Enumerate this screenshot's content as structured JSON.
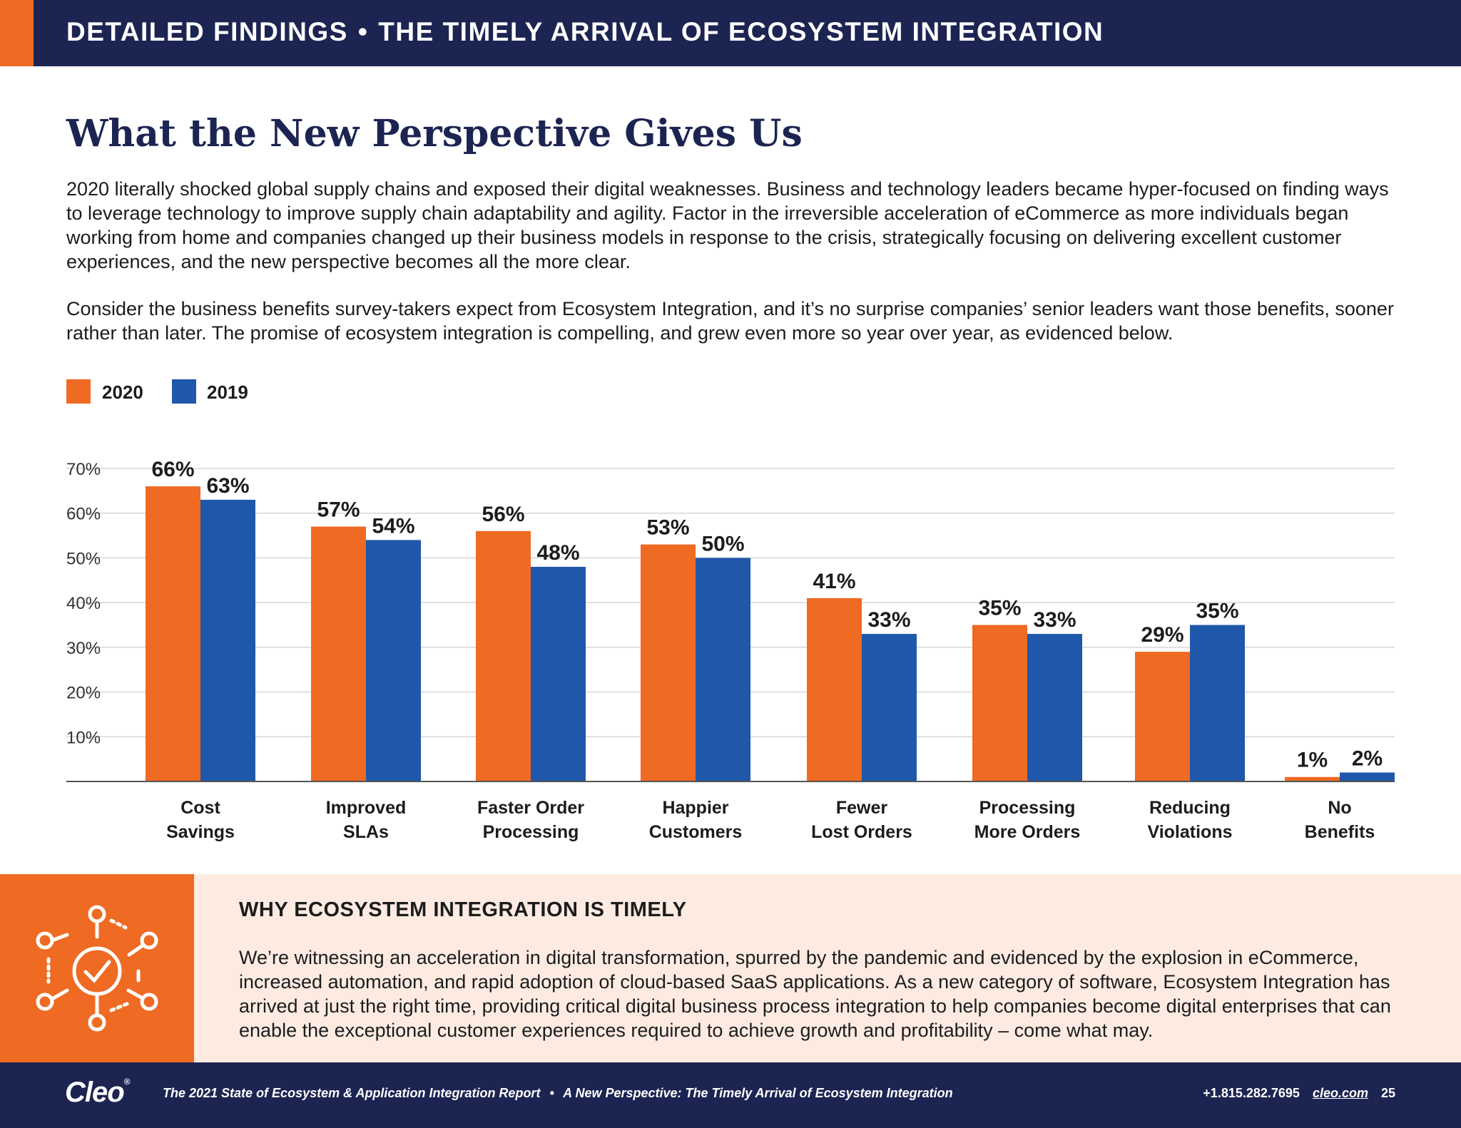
{
  "header": {
    "section": "DETAILED FINDINGS",
    "separator": "•",
    "title": "THE TIMELY ARRIVAL OF ECOSYSTEM INTEGRATION"
  },
  "page_title": "What the New Perspective Gives Us",
  "paragraphs": [
    "2020 literally shocked global supply chains and exposed their digital weaknesses. Business and technology leaders became hyper-focused on finding ways to leverage technology to improve supply chain adaptability and agility. Factor in the irreversible acceleration of eCommerce as more individuals began working from home and companies changed up their business models in response to the crisis, strategically focusing on delivering excellent customer experiences, and the new perspective becomes all the more clear.",
    "Consider the business benefits survey-takers expect from Ecosystem Integration, and it’s no surprise companies’ senior leaders want those benefits, sooner rather than later. The promise of ecosystem integration is compelling, and grew even more so year over year, as evidenced below."
  ],
  "colors": {
    "s2020": "#ef6a22",
    "s2019": "#1f57aa",
    "navy": "#1c2452",
    "grid": "#d6d6d6",
    "axis": "#555555"
  },
  "chart_data": {
    "type": "bar",
    "title": "",
    "xlabel": "",
    "ylabel": "",
    "ylim": [
      0,
      70
    ],
    "yticks": [
      10,
      20,
      30,
      40,
      50,
      60,
      70
    ],
    "ytick_labels": [
      "10%",
      "20%",
      "30%",
      "40%",
      "50%",
      "60%",
      "70%"
    ],
    "grid": true,
    "legend_position": "top-left",
    "categories": [
      [
        "Cost",
        "Savings"
      ],
      [
        "Improved",
        "SLAs"
      ],
      [
        "Faster Order",
        "Processing"
      ],
      [
        "Happier",
        "Customers"
      ],
      [
        "Fewer",
        "Lost Orders"
      ],
      [
        "Processing",
        "More Orders"
      ],
      [
        "Reducing",
        "Violations"
      ],
      [
        "No",
        "Benefits"
      ]
    ],
    "series": [
      {
        "name": "2020",
        "values": [
          66,
          57,
          56,
          53,
          41,
          35,
          29,
          1
        ],
        "labels": [
          "66%",
          "57%",
          "56%",
          "53%",
          "41%",
          "35%",
          "29%",
          "1%"
        ]
      },
      {
        "name": "2019",
        "values": [
          63,
          54,
          48,
          50,
          33,
          33,
          35,
          2
        ],
        "labels": [
          "63%",
          "54%",
          "48%",
          "50%",
          "33%",
          "33%",
          "35%",
          "2%"
        ]
      }
    ]
  },
  "callout": {
    "heading": "WHY ECOSYSTEM INTEGRATION IS TIMELY",
    "body": "We’re witnessing an acceleration in digital transformation, spurred by the pandemic and evidenced by the explosion in eCommerce, increased automation, and rapid adoption of cloud-based SaaS applications. As a new category of software, Ecosystem Integration has arrived at just the right time, providing critical digital business process integration to help companies become digital enterprises that can enable the exceptional customer experiences required to achieve growth and profitability – come what may.",
    "icon": "network-check-icon"
  },
  "footer": {
    "logo": "Cleo",
    "logo_mark": "®",
    "report": "The 2021 State of Ecosystem & Application Integration Report",
    "separator": "•",
    "subtitle": "A New Perspective: The Timely Arrival of Ecosystem Integration",
    "phone": "+1.815.282.7695",
    "url": "cleo.com",
    "page": "25"
  }
}
